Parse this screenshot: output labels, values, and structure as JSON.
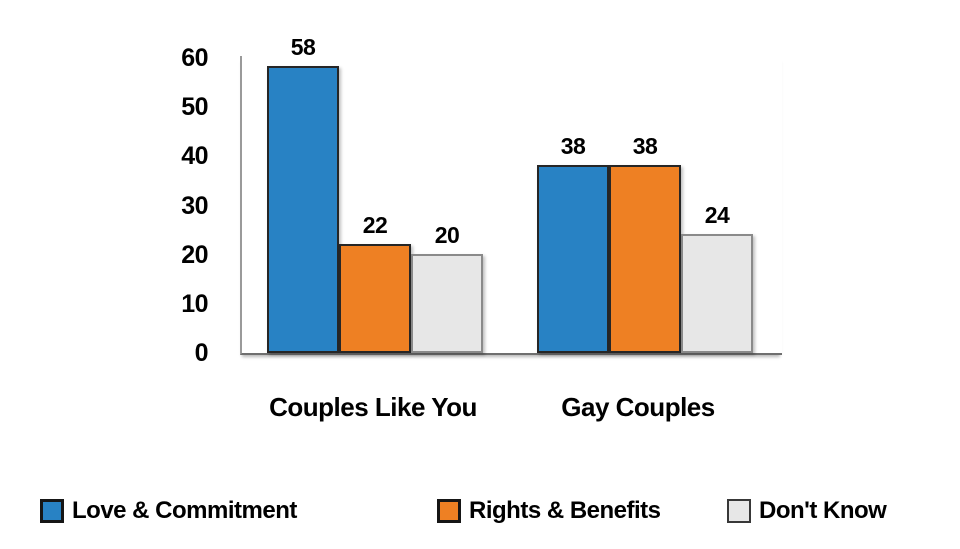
{
  "chart_data": {
    "type": "bar",
    "title": "",
    "xlabel": "",
    "ylabel": "",
    "categories": [
      "Couples Like You",
      "Gay Couples"
    ],
    "series": [
      {
        "name": "Love & Commitment",
        "color": "#2882C4",
        "values": [
          58,
          38
        ]
      },
      {
        "name": "Rights & Benefits",
        "color": "#EE8023",
        "values": [
          22,
          38
        ]
      },
      {
        "name": "Don't Know",
        "color": "#E7E7E7",
        "values": [
          20,
          24
        ]
      }
    ],
    "ylim": [
      0,
      60
    ],
    "yticks": [
      "60",
      "50",
      "40",
      "30",
      "20",
      "10",
      "0"
    ],
    "grid": false,
    "value_labels": true,
    "legend_position": "bottom"
  },
  "style": {
    "background": "#ffffff",
    "text_color": "#000000",
    "axis_line_color": "#9a9a9a",
    "baseline_color": "#6f6f6f",
    "bar_border_dark": "#262626",
    "bar_border_gray": "#8a8a8a"
  }
}
